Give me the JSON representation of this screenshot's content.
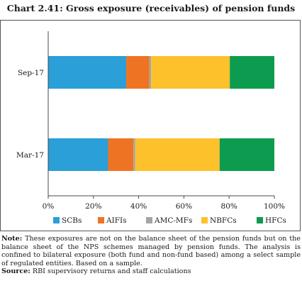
{
  "title": "Chart 2.41: Gross exposure (receivables) of pension funds",
  "note_label": "Note:",
  "note_text": "These exposures are not on the balance sheet of the pension funds but on the balance sheet of the NPS schemes managed by pension funds. The analysis is confined to bilateral exposure (both fund and non-fund based) among a select sample of regulated entities. Based on a sample.",
  "source_label": "Source:",
  "source_text": "RBI supervisory returns and staff calculations",
  "colors": {
    "SCBs": "#2a9fd8",
    "AIFIs": "#ee7424",
    "AMC-MFs": "#a5a5a5",
    "NBFCs": "#fdc12c",
    "HFCs": "#0d9b4f"
  },
  "chart_data": {
    "type": "bar",
    "orientation": "horizontal",
    "stacked": true,
    "categories": [
      "Sep-17",
      "Mar-17"
    ],
    "series": [
      {
        "name": "SCBs",
        "values": [
          34.5,
          26.5
        ]
      },
      {
        "name": "AIFIs",
        "values": [
          10.2,
          11.2
        ]
      },
      {
        "name": "AMC-MFs",
        "values": [
          0.8,
          0.8
        ]
      },
      {
        "name": "NBFCs",
        "values": [
          34.8,
          37.3
        ]
      },
      {
        "name": "HFCs",
        "values": [
          19.7,
          24.2
        ]
      }
    ],
    "xlim": [
      0,
      100
    ],
    "xticks": [
      "0%",
      "20%",
      "40%",
      "60%",
      "80%",
      "100%"
    ],
    "grid": false,
    "legend_position": "bottom"
  }
}
